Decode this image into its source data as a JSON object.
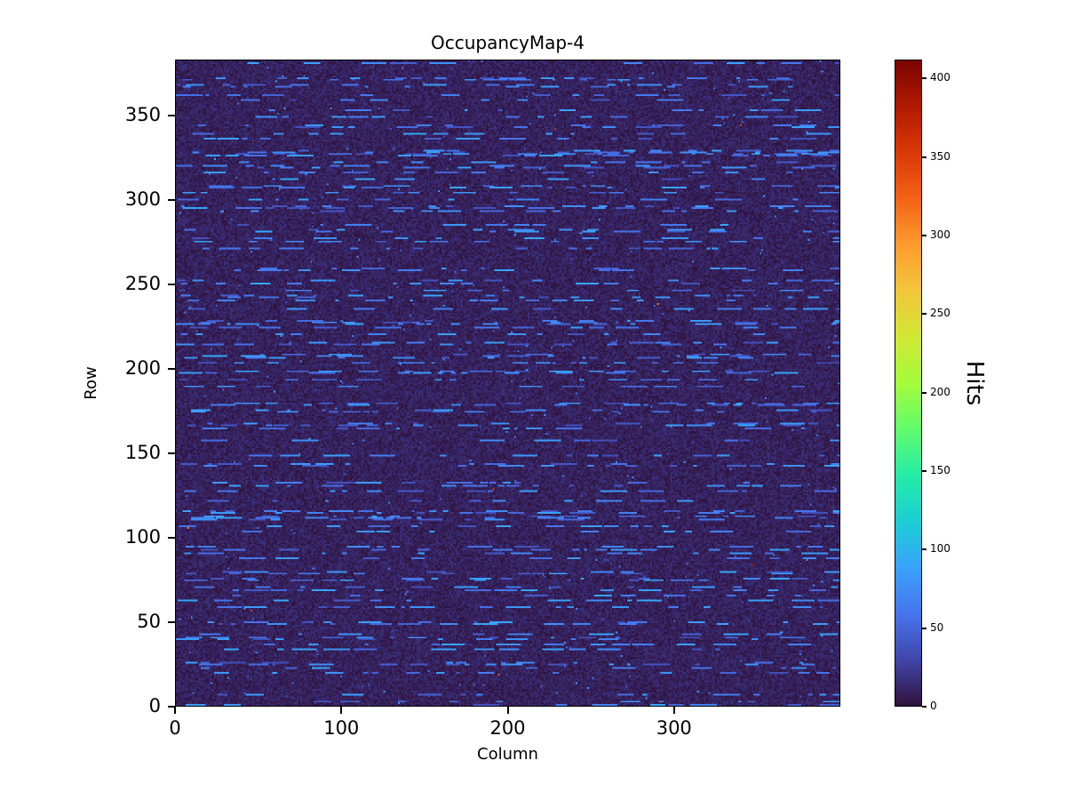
{
  "title": "OccupancyMap-4",
  "chart_data": {
    "type": "heatmap",
    "title": "OccupancyMap-4",
    "xlabel": "Column",
    "ylabel": "Row",
    "colorbar_label": "Hits",
    "x_range": [
      0,
      400
    ],
    "y_range": [
      0,
      383
    ],
    "value_range": [
      0,
      412
    ],
    "x_ticks": [
      0,
      100,
      200,
      300
    ],
    "y_ticks": [
      0,
      50,
      100,
      150,
      200,
      250,
      300,
      350
    ],
    "colorbar_ticks": [
      0,
      50,
      100,
      150,
      200,
      250,
      300,
      350,
      400
    ],
    "grid": false,
    "legend": "none",
    "colormap": "turbo",
    "colormap_stops": [
      "#30123b",
      "#4145ab",
      "#4675ed",
      "#39a2fc",
      "#1bcfd4",
      "#24eca6",
      "#61fc6c",
      "#a4fc3b",
      "#d1e834",
      "#f3c63a",
      "#fe9b2d",
      "#f36315",
      "#d93806",
      "#b11901",
      "#7a0402"
    ],
    "description": "Mostly near-zero dark background with scattered horizontal dash-like streaks of low hit counts (blue), typical pixel-detector occupancy map",
    "pattern": {
      "seed": 42,
      "ncols": 400,
      "nrows": 383,
      "background_value_range": [
        0,
        18
      ],
      "streak_value_range": [
        35,
        92
      ],
      "streak_row_probability": 0.32,
      "dash_start_probability": 0.045,
      "dash_length_range": [
        2,
        16
      ],
      "sparse_dot_probability": 0.003,
      "hot_pixel_probability": 4e-05,
      "hot_value_range": [
        300,
        412
      ]
    }
  }
}
